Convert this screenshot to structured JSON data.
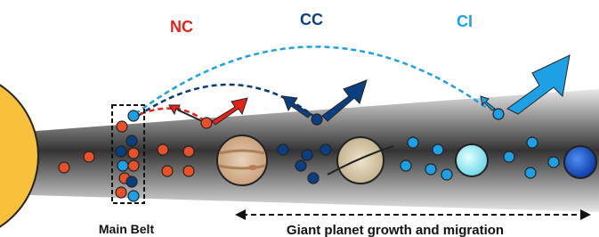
{
  "labels": {
    "nc": "NC",
    "cc": "CC",
    "ci": "CI",
    "main_belt": "Main Belt",
    "migration": "Giant planet growth and migration"
  }
}
